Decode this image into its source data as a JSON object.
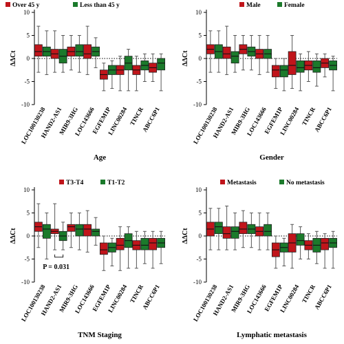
{
  "colors": {
    "red": "#c0151b",
    "green": "#1b7a2b",
    "axis": "#000000"
  },
  "chart_data": [
    {
      "type": "box",
      "xlabel": "Age",
      "ylabel": "ΔΔCt",
      "ylim": [
        -10,
        10
      ],
      "yticks": [
        -10,
        -5,
        0,
        5,
        10
      ],
      "legend_position": "top-left",
      "categories": [
        "LOC100130238",
        "HAND2-AS1",
        "MIR9-3HG",
        "LOC143666",
        "EGFEM1P",
        "LINC00284",
        "TINCR",
        "ABCC6P1"
      ],
      "series": [
        {
          "name": "Over 45 y",
          "color": "#c0151b",
          "boxes": [
            {
              "min": -3,
              "q1": 0.5,
              "median": 1.5,
              "q3": 3,
              "max": 7
            },
            {
              "min": -3,
              "q1": 0,
              "median": 1,
              "q3": 2,
              "max": 6
            },
            {
              "min": -2.5,
              "q1": 0.5,
              "median": 1.5,
              "q3": 2.5,
              "max": 5
            },
            {
              "min": -3.5,
              "q1": 0,
              "median": 1,
              "q3": 3,
              "max": 7
            },
            {
              "min": -7,
              "q1": -4.5,
              "median": -3.5,
              "q3": -2.5,
              "max": -1
            },
            {
              "min": -7,
              "q1": -3.5,
              "median": -2.5,
              "q3": -1.5,
              "max": 0.5
            },
            {
              "min": -7,
              "q1": -3.5,
              "median": -2.5,
              "q3": -1.5,
              "max": 0.5
            },
            {
              "min": -5,
              "q1": -3,
              "median": -2,
              "q3": -1,
              "max": 1
            }
          ]
        },
        {
          "name": "Less than 45 y",
          "color": "#1b7a2b",
          "boxes": [
            {
              "min": -3.5,
              "q1": 0.5,
              "median": 1.5,
              "q3": 2.5,
              "max": 6
            },
            {
              "min": -3,
              "q1": -1,
              "median": 0.5,
              "q3": 2,
              "max": 5
            },
            {
              "min": -3,
              "q1": 0.5,
              "median": 1.5,
              "q3": 3,
              "max": 5
            },
            {
              "min": -2,
              "q1": 0.5,
              "median": 1.5,
              "q3": 2.5,
              "max": 4.5
            },
            {
              "min": -6.5,
              "q1": -3.5,
              "median": -2.5,
              "q3": -1.5,
              "max": -0.5
            },
            {
              "min": -7,
              "q1": -2.5,
              "median": -1,
              "q3": 0.5,
              "max": 2
            },
            {
              "min": -5,
              "q1": -2.5,
              "median": -1.5,
              "q3": -0.5,
              "max": 1
            },
            {
              "min": -7,
              "q1": -2.5,
              "median": -1,
              "q3": 0,
              "max": 1
            }
          ]
        }
      ]
    },
    {
      "type": "box",
      "xlabel": "Gender",
      "ylabel": "ΔΔCt",
      "ylim": [
        -10,
        10
      ],
      "yticks": [
        -10,
        -5,
        0,
        5,
        10
      ],
      "legend_position": "top-center",
      "categories": [
        "LOC100130238",
        "HAND2-AS1",
        "MIR9-3HG",
        "LOC143666",
        "EGFEM1P",
        "LINC00284",
        "TINCR",
        "ABCC6P1"
      ],
      "series": [
        {
          "name": "Male",
          "color": "#c0151b",
          "boxes": [
            {
              "min": -3,
              "q1": 1,
              "median": 2,
              "q3": 3,
              "max": 6
            },
            {
              "min": -3.5,
              "q1": 0,
              "median": 1,
              "q3": 2.5,
              "max": 7
            },
            {
              "min": -2.5,
              "q1": 1,
              "median": 2,
              "q3": 3,
              "max": 5
            },
            {
              "min": -3.5,
              "q1": 0,
              "median": 1,
              "q3": 2,
              "max": 5
            },
            {
              "min": -6.5,
              "q1": -4,
              "median": -2.5,
              "q3": -1.5,
              "max": 0
            },
            {
              "min": -6.5,
              "q1": -3.5,
              "median": -1.5,
              "q3": 1.5,
              "max": 5
            },
            {
              "min": -5,
              "q1": -2.5,
              "median": -1.5,
              "q3": -0.5,
              "max": 1.5
            },
            {
              "min": -4,
              "q1": -2,
              "median": -1,
              "q3": 0,
              "max": 1
            }
          ]
        },
        {
          "name": "Female",
          "color": "#1b7a2b",
          "boxes": [
            {
              "min": -3,
              "q1": 0,
              "median": 1.5,
              "q3": 3,
              "max": 6
            },
            {
              "min": -3,
              "q1": -1,
              "median": 0.5,
              "q3": 1.5,
              "max": 5
            },
            {
              "min": -2.5,
              "q1": 0.5,
              "median": 1.5,
              "q3": 2.5,
              "max": 5
            },
            {
              "min": -3,
              "q1": 0,
              "median": 1,
              "q3": 2,
              "max": 5
            },
            {
              "min": -7,
              "q1": -4,
              "median": -2.5,
              "q3": -1.5,
              "max": 0
            },
            {
              "min": -7,
              "q1": -3,
              "median": -2,
              "q3": -0.5,
              "max": 1
            },
            {
              "min": -6,
              "q1": -3,
              "median": -2,
              "q3": -0.5,
              "max": 1
            },
            {
              "min": -7,
              "q1": -2.5,
              "median": -1.5,
              "q3": -0.5,
              "max": 0.5
            }
          ]
        }
      ]
    },
    {
      "type": "box",
      "xlabel": "TNM Staging",
      "ylabel": "ΔΔCt",
      "ylim": [
        -10,
        10
      ],
      "yticks": [
        -10,
        -5,
        0,
        5,
        10
      ],
      "legend_position": "top-center",
      "annotation": "P = 0.031",
      "categories": [
        "LOC100130238",
        "HAND2-AS1",
        "MIR9-3HG",
        "LOC143666",
        "EGFEM1P",
        "LINC00284",
        "TINCR",
        "ABCC6P1"
      ],
      "series": [
        {
          "name": "T3-T4",
          "color": "#c0151b",
          "boxes": [
            {
              "min": -2.5,
              "q1": 1,
              "median": 2,
              "q3": 3,
              "max": 7
            },
            {
              "min": -3,
              "q1": 0.5,
              "median": 1,
              "q3": 1.5,
              "max": 7
            },
            {
              "min": -2.5,
              "q1": 1,
              "median": 2,
              "q3": 2.5,
              "max": 5
            },
            {
              "min": -3.5,
              "q1": 0,
              "median": 1.5,
              "q3": 2.5,
              "max": 5.5
            },
            {
              "min": -7.5,
              "q1": -4,
              "median": -3,
              "q3": -1.5,
              "max": 0
            },
            {
              "min": -7.5,
              "q1": -3,
              "median": -2,
              "q3": -0.5,
              "max": 2
            },
            {
              "min": -7,
              "q1": -3,
              "median": -2,
              "q3": -1,
              "max": 1
            },
            {
              "min": -7,
              "q1": -3,
              "median": -1.5,
              "q3": -0.5,
              "max": 1
            }
          ]
        },
        {
          "name": "T1-T2",
          "color": "#1b7a2b",
          "boxes": [
            {
              "min": -5,
              "q1": -0.5,
              "median": 1.5,
              "q3": 2.5,
              "max": 5
            },
            {
              "min": -3,
              "q1": -1,
              "median": 0,
              "q3": 1,
              "max": 3
            },
            {
              "min": -3,
              "q1": 0,
              "median": 1.5,
              "q3": 2.5,
              "max": 5
            },
            {
              "min": -2,
              "q1": 0,
              "median": 1,
              "q3": 1.5,
              "max": 4
            },
            {
              "min": -6.5,
              "q1": -3.5,
              "median": -2.5,
              "q3": -1.5,
              "max": -0.5
            },
            {
              "min": -7,
              "q1": -2.5,
              "median": -1,
              "q3": 0.5,
              "max": 2
            },
            {
              "min": -6,
              "q1": -3,
              "median": -2,
              "q3": -0.5,
              "max": 1
            },
            {
              "min": -6,
              "q1": -2.5,
              "median": -1.5,
              "q3": -0.5,
              "max": 1
            }
          ]
        }
      ]
    },
    {
      "type": "box",
      "xlabel": "Lymphatic metastasis",
      "ylabel": "ΔΔCt",
      "ylim": [
        -10,
        10
      ],
      "yticks": [
        -10,
        -5,
        0,
        5,
        10
      ],
      "legend_position": "top-center",
      "categories": [
        "LOC100130238",
        "HAND2-AS1",
        "MIR9-3HG",
        "LOC143666",
        "EGFEM1P",
        "LINC00284",
        "TINCR",
        "ABCC6P1"
      ],
      "series": [
        {
          "name": "Metastasis",
          "color": "#c0151b",
          "boxes": [
            {
              "min": -3,
              "q1": 0,
              "median": 1.5,
              "q3": 3,
              "max": 6
            },
            {
              "min": -3,
              "q1": -0.5,
              "median": 0.5,
              "q3": 2,
              "max": 6.5
            },
            {
              "min": -2.5,
              "q1": 0.5,
              "median": 1.5,
              "q3": 3,
              "max": 5.5
            },
            {
              "min": -3,
              "q1": 0,
              "median": 1,
              "q3": 2,
              "max": 5
            },
            {
              "min": -7,
              "q1": -4.5,
              "median": -3,
              "q3": -1.5,
              "max": 0
            },
            {
              "min": -7,
              "q1": -3.5,
              "median": -1.5,
              "q3": 0.5,
              "max": 2.5
            },
            {
              "min": -5,
              "q1": -3,
              "median": -2,
              "q3": -1,
              "max": 0.5
            },
            {
              "min": -7,
              "q1": -3,
              "median": -1.5,
              "q3": -0.5,
              "max": 0.5
            }
          ]
        },
        {
          "name": "No metastasis",
          "color": "#1b7a2b",
          "boxes": [
            {
              "min": -3,
              "q1": 0.5,
              "median": 2,
              "q3": 3,
              "max": 6
            },
            {
              "min": -3,
              "q1": -0.5,
              "median": 1,
              "q3": 2,
              "max": 5
            },
            {
              "min": -2.5,
              "q1": 0.5,
              "median": 1.5,
              "q3": 2.5,
              "max": 5
            },
            {
              "min": -3,
              "q1": 0,
              "median": 1,
              "q3": 2.5,
              "max": 5
            },
            {
              "min": -6.5,
              "q1": -3.5,
              "median": -2.5,
              "q3": -1.5,
              "max": -0.5
            },
            {
              "min": -5,
              "q1": -2,
              "median": -1,
              "q3": 0.5,
              "max": 2
            },
            {
              "min": -6,
              "q1": -3.5,
              "median": -2,
              "q3": -0.5,
              "max": 1
            },
            {
              "min": -7,
              "q1": -2.5,
              "median": -1.5,
              "q3": -0.5,
              "max": 1
            }
          ]
        }
      ]
    }
  ]
}
